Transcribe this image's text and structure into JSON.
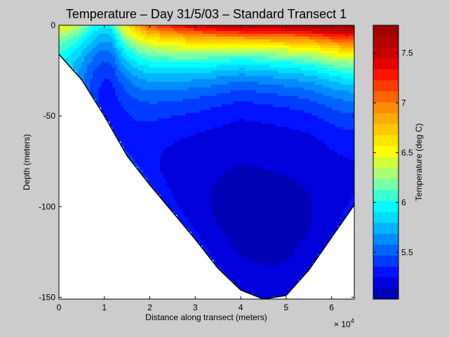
{
  "chart_data": {
    "type": "heatmap",
    "title": "Temperature – Day 31/5/03 – Standard Transect 1",
    "xlabel": "Distance along transect (meters)",
    "ylabel": "Depth (meters)",
    "x_exponent_label": "× 10",
    "x_exponent_power": "4",
    "xlim": [
      0,
      6.5
    ],
    "ylim": [
      -151,
      0
    ],
    "x_ticks": [
      0,
      1,
      2,
      3,
      4,
      5,
      6
    ],
    "x_tick_labels": [
      "0",
      "1",
      "2",
      "3",
      "4",
      "5",
      "6"
    ],
    "y_ticks": [
      0,
      -50,
      -100,
      -150
    ],
    "y_tick_labels": [
      "0",
      "-50",
      "-100",
      "-150"
    ],
    "x_units_note": "x in units of 10^4 meters",
    "bottom_profile": {
      "x": [
        0,
        0.5,
        1,
        1.5,
        2,
        2.5,
        3,
        3.5,
        4,
        4.5,
        5,
        5.5,
        6,
        6.5
      ],
      "depth": [
        -16,
        -30,
        -50,
        -72,
        -88,
        -103,
        -118,
        -134,
        -146,
        -151,
        -149,
        -135,
        -117,
        -99
      ]
    },
    "temperature_field_description": "warm surface water (7.7 deg C) at right, cold core (~5.1 deg C) at 60-100 m depth, cooler surface plume near x=1",
    "colorbar": {
      "label": "Temperature (deg C)",
      "range": [
        5.03,
        7.78
      ],
      "ticks": [
        5.5,
        6,
        6.5,
        7,
        7.5
      ],
      "tick_labels": [
        "5.5",
        "6",
        "6.5",
        "7",
        "7.5"
      ],
      "levels": [
        5.03,
        5.14,
        5.25,
        5.36,
        5.47,
        5.58,
        5.69,
        5.8,
        5.91,
        6.02,
        6.13,
        6.24,
        6.35,
        6.46,
        6.57,
        6.68,
        6.79,
        6.9,
        7.01,
        7.12,
        7.23,
        7.34,
        7.45,
        7.56,
        7.67,
        7.78
      ],
      "colors": [
        "#0000b4",
        "#0000dc",
        "#0012ff",
        "#003cff",
        "#0064ff",
        "#008cff",
        "#00b4ff",
        "#00dcff",
        "#00ffff",
        "#3cffd2",
        "#78ffaa",
        "#aaff78",
        "#d2ff3c",
        "#ffff00",
        "#ffe600",
        "#ffc800",
        "#ffaa00",
        "#ff8c00",
        "#ff6400",
        "#ff3c00",
        "#ff1400",
        "#e60000",
        "#c80000",
        "#b40000",
        "#a00000"
      ]
    }
  }
}
